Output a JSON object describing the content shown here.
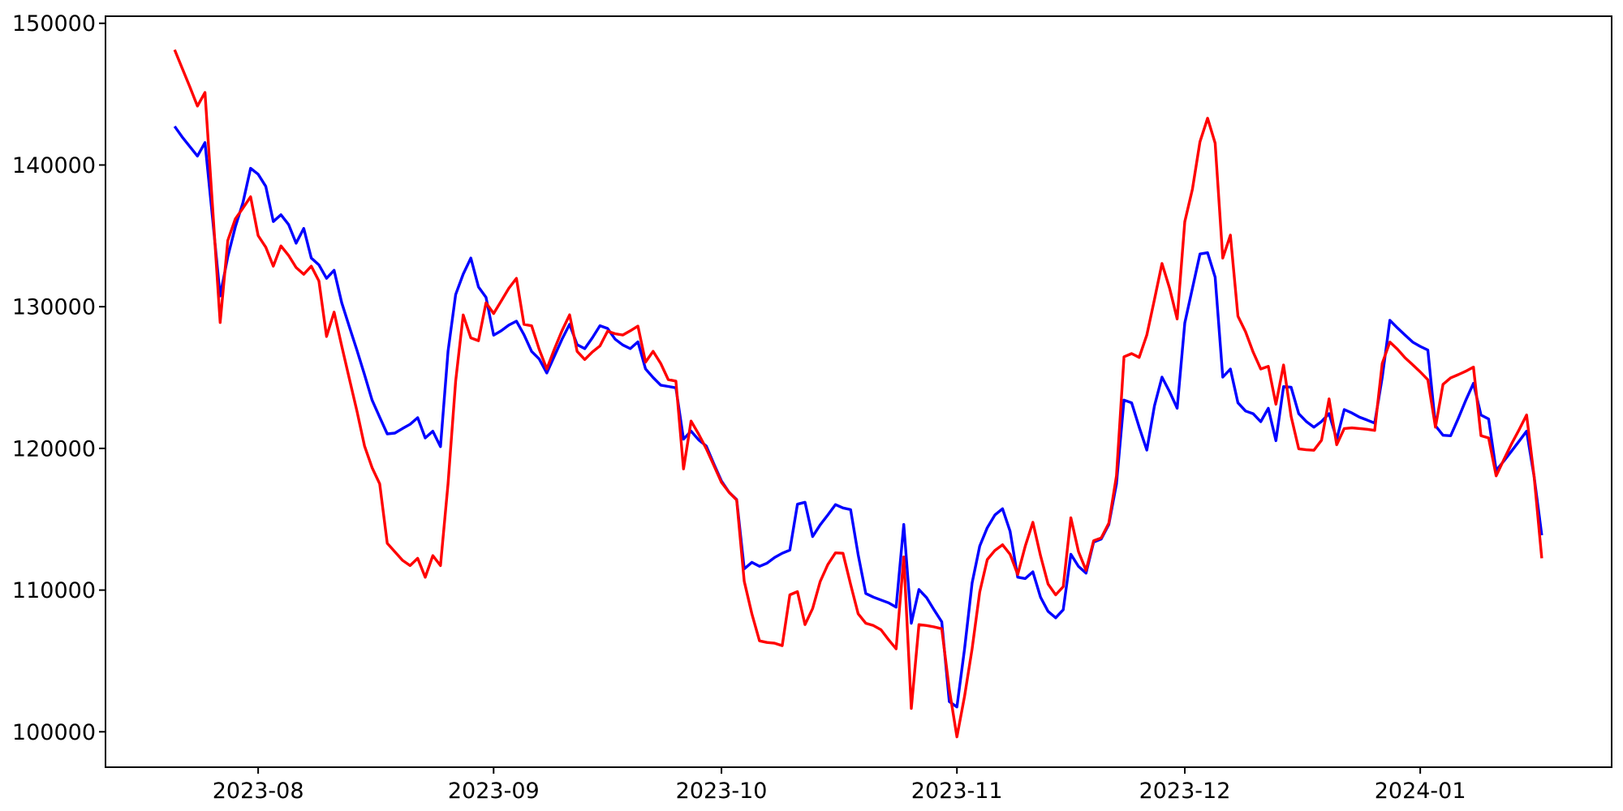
{
  "chart_data": {
    "type": "line",
    "title": "",
    "xlabel": "",
    "ylabel": "",
    "grid": false,
    "legend": null,
    "background_color": "#ffffff",
    "spine_color": "#000000",
    "x_axis": {
      "start_date": "2023-07-21",
      "end_date": "2024-01-17",
      "frequency": "daily",
      "n_points": 181,
      "tick_labels": [
        "2023-08",
        "2023-09",
        "2023-10",
        "2023-11",
        "2023-12",
        "2024-01"
      ],
      "tick_day_indices": [
        11,
        42,
        72,
        103,
        133,
        164
      ]
    },
    "y_axis": {
      "min": 97500,
      "max": 150500,
      "tick_values": [
        100000,
        110000,
        120000,
        130000,
        140000,
        150000
      ],
      "tick_labels": [
        "100000",
        "110000",
        "120000",
        "130000",
        "140000",
        "150000"
      ]
    },
    "series": [
      {
        "name": "blue-series",
        "color": "#0000ff",
        "values": [
          142730,
          141980,
          141300,
          140630,
          141580,
          136200,
          130760,
          133530,
          135630,
          137350,
          139770,
          139350,
          138490,
          136010,
          136490,
          135800,
          134480,
          135530,
          133430,
          132950,
          132000,
          132570,
          130280,
          128600,
          126940,
          125200,
          123410,
          122200,
          121025,
          121080,
          121400,
          121700,
          122170,
          120740,
          121215,
          120125,
          126850,
          130855,
          132300,
          133430,
          131400,
          130660,
          127990,
          128300,
          128700,
          128980,
          128025,
          126845,
          126310,
          125320,
          126500,
          127700,
          128755,
          127320,
          127040,
          127800,
          128660,
          128465,
          127710,
          127300,
          127040,
          127520,
          125610,
          125000,
          124465,
          124370,
          124275,
          120650,
          121220,
          120600,
          120170,
          118900,
          117690,
          116900,
          116390,
          111500,
          111960,
          111675,
          111900,
          112300,
          112600,
          112820,
          116060,
          116200,
          113780,
          114600,
          115300,
          116030,
          115800,
          115680,
          112500,
          109760,
          109500,
          109300,
          109100,
          108800,
          114630,
          107660,
          110040,
          109470,
          108600,
          107760,
          102130,
          101750,
          105850,
          110500,
          113105,
          114400,
          115300,
          115740,
          114155,
          110910,
          110815,
          111290,
          109500,
          108500,
          108040,
          108615,
          112530,
          111670,
          111195,
          113390,
          113600,
          114630,
          117500,
          123410,
          123215,
          121500,
          119880,
          123000,
          125030,
          124000,
          122835,
          128845,
          131300,
          133720,
          133810,
          132090,
          125030,
          125600,
          123215,
          122640,
          122450,
          121880,
          122835,
          120545,
          124360,
          124320,
          122450,
          121900,
          121500,
          121900,
          122455,
          120640,
          122740,
          122500,
          122200,
          122000,
          121785,
          125000,
          129040,
          128500,
          128000,
          127500,
          127200,
          126940,
          121600,
          120925,
          120890,
          122100,
          123400,
          124590,
          122360,
          122075,
          118445,
          119100,
          119800,
          120500,
          121215,
          118000,
          113870
        ]
      },
      {
        "name": "red-series",
        "color": "#ff0000",
        "values": [
          148130,
          146830,
          145520,
          144160,
          145120,
          137000,
          128885,
          134670,
          136200,
          136960,
          137760,
          135015,
          134200,
          132860,
          134290,
          133620,
          132760,
          132290,
          132860,
          131810,
          127900,
          129615,
          127230,
          124940,
          122650,
          120170,
          118640,
          117500,
          113300,
          112700,
          112100,
          111730,
          112245,
          110905,
          112435,
          111730,
          117500,
          124750,
          129420,
          127800,
          127600,
          130280,
          129515,
          130400,
          131300,
          132000,
          128750,
          128655,
          127000,
          125605,
          127000,
          128300,
          129425,
          126845,
          126270,
          126800,
          127230,
          128270,
          128090,
          128000,
          128300,
          128630,
          126090,
          126850,
          126000,
          124850,
          124750,
          118550,
          121930,
          121000,
          119980,
          118800,
          117595,
          116900,
          116355,
          110625,
          108330,
          106420,
          106300,
          106250,
          106080,
          109660,
          109890,
          107560,
          108700,
          110600,
          111800,
          112625,
          112600,
          110400,
          108330,
          107660,
          107500,
          107200,
          106500,
          105850,
          112340,
          101650,
          107560,
          107500,
          107400,
          107270,
          103000,
          99640,
          102500,
          105850,
          109860,
          112150,
          112800,
          113200,
          112530,
          111100,
          113105,
          114785,
          112435,
          110430,
          109665,
          110240,
          115105,
          112720,
          111390,
          113485,
          113680,
          114725,
          118060,
          126465,
          126690,
          126420,
          128000,
          130500,
          133050,
          131300,
          129135,
          136000,
          138290,
          141640,
          143300,
          141540,
          133430,
          135055,
          129330,
          128230,
          126800,
          125600,
          125790,
          123120,
          125890,
          122260,
          119970,
          119900,
          119870,
          120575,
          123495,
          120255,
          121400,
          121450,
          121400,
          121350,
          121270,
          126000,
          127500,
          127000,
          126400,
          125900,
          125400,
          124845,
          121500,
          124520,
          124980,
          125200,
          125450,
          125740,
          120890,
          120740,
          118060,
          119200,
          120300,
          121300,
          122360,
          118000,
          112245
        ]
      }
    ]
  }
}
